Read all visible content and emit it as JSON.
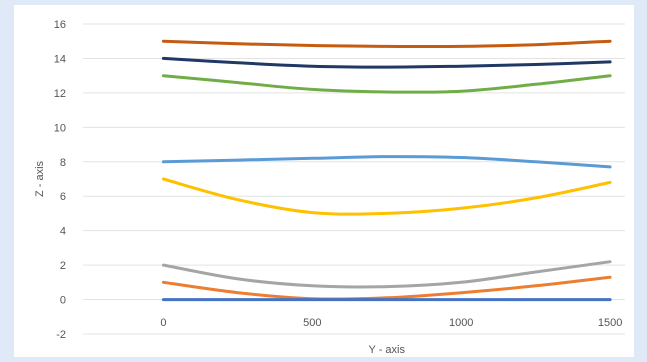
{
  "chart_data": {
    "type": "line",
    "title": "",
    "xlabel": "Y - axis",
    "ylabel": "Z - axis",
    "xlim": [
      -270,
      1550
    ],
    "ylim": [
      -2,
      16
    ],
    "x_ticks": [
      0,
      500,
      1000,
      1500
    ],
    "y_ticks": [
      -2,
      0,
      2,
      4,
      6,
      8,
      10,
      12,
      14,
      16
    ],
    "grid": "horizontal",
    "legend": "none",
    "x": [
      0,
      250,
      500,
      750,
      1000,
      1250,
      1500
    ],
    "series": [
      {
        "color": "#c55a11",
        "values": [
          15.0,
          14.85,
          14.75,
          14.7,
          14.7,
          14.8,
          15.0
        ]
      },
      {
        "color": "#1f3864",
        "values": [
          14.0,
          13.75,
          13.55,
          13.5,
          13.55,
          13.65,
          13.8
        ]
      },
      {
        "color": "#70ad47",
        "values": [
          13.0,
          12.6,
          12.2,
          12.05,
          12.1,
          12.5,
          13.0
        ]
      },
      {
        "color": "#5b9bd5",
        "values": [
          8.0,
          8.1,
          8.2,
          8.3,
          8.25,
          8.0,
          7.7
        ]
      },
      {
        "color": "#ffc000",
        "values": [
          7.0,
          5.8,
          5.05,
          5.0,
          5.3,
          5.9,
          6.8
        ]
      },
      {
        "color": "#a5a5a5",
        "values": [
          2.0,
          1.2,
          0.8,
          0.75,
          1.0,
          1.6,
          2.2
        ]
      },
      {
        "color": "#ed7d31",
        "values": [
          1.0,
          0.4,
          0.05,
          0.1,
          0.4,
          0.8,
          1.3
        ]
      },
      {
        "color": "#4472c4",
        "values": [
          0.0,
          0.0,
          0.0,
          0.0,
          0.0,
          0.0,
          0.0
        ]
      }
    ]
  }
}
